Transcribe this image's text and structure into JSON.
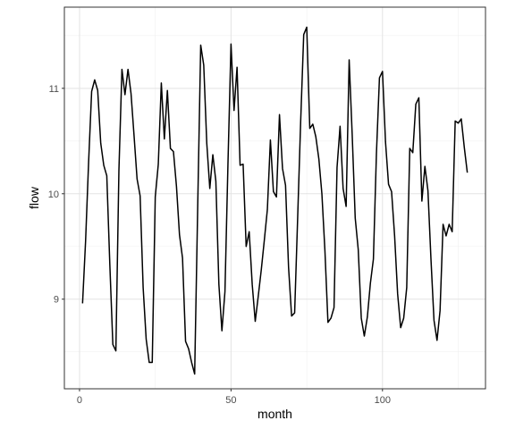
{
  "chart_data": {
    "type": "line",
    "xlabel": "month",
    "ylabel": "flow",
    "xlim": [
      -5,
      134
    ],
    "ylim": [
      8.15,
      11.77
    ],
    "x_ticks": [
      0,
      50,
      100
    ],
    "x_minor_ticks": [
      25,
      75,
      125
    ],
    "y_ticks": [
      9,
      10,
      11
    ],
    "y_minor_ticks": [
      8.5,
      9.5,
      10.5,
      11.5
    ],
    "tick_labels": {
      "x": [
        "0",
        "50",
        "100"
      ],
      "y": [
        "9",
        "10",
        "11"
      ]
    },
    "grid": true,
    "line_color": "#000000",
    "x": [
      1,
      2,
      3,
      4,
      5,
      6,
      7,
      8,
      9,
      10,
      11,
      12,
      13,
      14,
      15,
      16,
      17,
      18,
      19,
      20,
      21,
      22,
      23,
      24,
      25,
      26,
      27,
      28,
      29,
      30,
      31,
      32,
      33,
      34,
      35,
      36,
      37,
      38,
      39,
      40,
      41,
      42,
      43,
      44,
      45,
      46,
      47,
      48,
      49,
      50,
      51,
      52,
      53,
      54,
      55,
      56,
      57,
      58,
      59,
      60,
      61,
      62,
      63,
      64,
      65,
      66,
      67,
      68,
      69,
      70,
      71,
      72,
      73,
      74,
      75,
      76,
      77,
      78,
      79,
      80,
      81,
      82,
      83,
      84,
      85,
      86,
      87,
      88,
      89,
      90,
      91,
      92,
      93,
      94,
      95,
      96,
      97,
      98,
      99,
      100,
      101,
      102,
      103,
      104,
      105,
      106,
      107,
      108,
      109,
      110,
      111,
      112,
      113,
      114,
      115,
      116,
      117,
      118,
      119,
      120,
      121,
      122,
      123,
      124,
      125,
      126,
      127,
      128
    ],
    "values": [
      8.96,
      9.55,
      10.3,
      10.97,
      11.08,
      10.98,
      10.48,
      10.27,
      10.17,
      9.33,
      8.57,
      8.51,
      10.22,
      11.18,
      10.94,
      11.18,
      10.95,
      10.55,
      10.14,
      9.98,
      9.11,
      8.62,
      8.4,
      8.4,
      9.97,
      10.28,
      11.05,
      10.52,
      10.98,
      10.43,
      10.4,
      10.07,
      9.61,
      9.39,
      8.6,
      8.53,
      8.4,
      8.29,
      9.86,
      11.41,
      11.22,
      10.48,
      10.05,
      10.37,
      10.12,
      9.14,
      8.7,
      9.07,
      10.29,
      11.42,
      10.79,
      11.2,
      10.27,
      10.28,
      9.5,
      9.64,
      9.14,
      8.79,
      9.03,
      9.28,
      9.56,
      9.85,
      10.51,
      10.02,
      9.97,
      10.75,
      10.24,
      10.08,
      9.3,
      8.84,
      8.87,
      9.77,
      10.69,
      11.51,
      11.58,
      10.62,
      10.66,
      10.54,
      10.33,
      10.0,
      9.46,
      8.78,
      8.82,
      8.92,
      10.25,
      10.64,
      10.05,
      9.88,
      11.27,
      10.56,
      9.77,
      9.47,
      8.82,
      8.65,
      8.83,
      9.15,
      9.38,
      10.38,
      11.1,
      11.16,
      10.49,
      10.09,
      10.02,
      9.6,
      9.05,
      8.73,
      8.82,
      9.11,
      10.43,
      10.39,
      10.85,
      10.91,
      9.93,
      10.26,
      10.03,
      9.38,
      8.8,
      8.61,
      8.89,
      9.71,
      9.6,
      9.71,
      9.64,
      10.69,
      10.67,
      10.71,
      10.44,
      10.2
    ]
  }
}
